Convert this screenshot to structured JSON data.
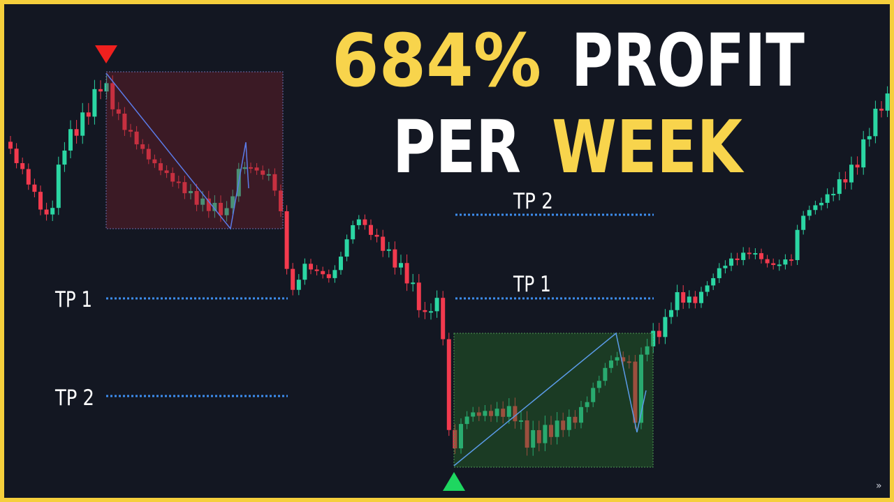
{
  "headline": {
    "line1": [
      "684%",
      "PROFIT"
    ],
    "line2": [
      "PER",
      "WEEK"
    ]
  },
  "left_targets": [
    "TP 1",
    "TP 2"
  ],
  "right_targets": [
    "TP 2",
    "TP 1"
  ],
  "scroll_button": "»"
}
